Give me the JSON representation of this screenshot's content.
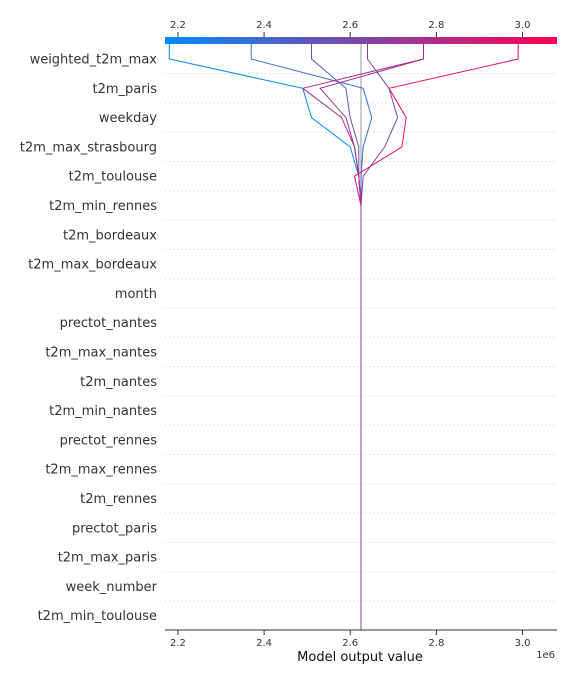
{
  "chart_data": {
    "type": "line",
    "xlabel": "Model output value",
    "x_offset_label": "1e6",
    "xlim": [
      2.17,
      3.08
    ],
    "x_ticks": [
      2.2,
      2.4,
      2.6,
      2.8,
      3.0
    ],
    "x_tick_labels": [
      "2.2",
      "2.4",
      "2.6",
      "2.8",
      "3.0"
    ],
    "base_value": 2.625,
    "colorbar": {
      "start_color": "#008bfb",
      "end_color": "#ff0052",
      "range": [
        2.17,
        3.08
      ]
    },
    "features": [
      "weighted_t2m_max",
      "t2m_paris",
      "weekday",
      "t2m_max_strasbourg",
      "t2m_toulouse",
      "t2m_min_rennes",
      "t2m_bordeaux",
      "t2m_max_bordeaux",
      "month",
      "prectot_nantes",
      "t2m_max_nantes",
      "t2m_nantes",
      "t2m_min_nantes",
      "prectot_rennes",
      "t2m_max_rennes",
      "t2m_rennes",
      "prectot_paris",
      "t2m_max_paris",
      "week_number",
      "t2m_min_toulouse"
    ],
    "series": [
      {
        "output": 2.18,
        "points": [
          2.625,
          2.625,
          2.625,
          2.625,
          2.625,
          2.625,
          2.625,
          2.625,
          2.625,
          2.625,
          2.625,
          2.625,
          2.625,
          2.625,
          2.625,
          2.625,
          2.62,
          2.6,
          2.51,
          2.49,
          2.18
        ]
      },
      {
        "output": 2.37,
        "points": [
          2.625,
          2.625,
          2.625,
          2.625,
          2.625,
          2.625,
          2.625,
          2.625,
          2.625,
          2.625,
          2.625,
          2.625,
          2.625,
          2.625,
          2.625,
          2.625,
          2.625,
          2.63,
          2.65,
          2.63,
          2.37
        ]
      },
      {
        "output": 2.51,
        "points": [
          2.625,
          2.625,
          2.625,
          2.625,
          2.625,
          2.625,
          2.625,
          2.625,
          2.625,
          2.625,
          2.625,
          2.625,
          2.625,
          2.625,
          2.625,
          2.625,
          2.62,
          2.62,
          2.6,
          2.59,
          2.51
        ]
      },
      {
        "output": 2.77,
        "points": [
          2.625,
          2.625,
          2.625,
          2.625,
          2.625,
          2.625,
          2.625,
          2.625,
          2.625,
          2.625,
          2.625,
          2.625,
          2.625,
          2.625,
          2.625,
          2.625,
          2.62,
          2.61,
          2.58,
          2.49,
          2.77
        ]
      },
      {
        "output": 2.77,
        "points": [
          2.625,
          2.625,
          2.625,
          2.625,
          2.625,
          2.625,
          2.625,
          2.625,
          2.625,
          2.625,
          2.625,
          2.625,
          2.625,
          2.625,
          2.625,
          2.625,
          2.62,
          2.61,
          2.59,
          2.53,
          2.77
        ]
      },
      {
        "output": 2.99,
        "points": [
          2.625,
          2.625,
          2.625,
          2.625,
          2.625,
          2.625,
          2.625,
          2.625,
          2.625,
          2.625,
          2.625,
          2.625,
          2.625,
          2.625,
          2.625,
          2.625,
          2.61,
          2.72,
          2.73,
          2.69,
          2.99
        ]
      },
      {
        "output": 2.64,
        "points": [
          2.625,
          2.625,
          2.625,
          2.625,
          2.625,
          2.625,
          2.625,
          2.625,
          2.625,
          2.625,
          2.625,
          2.625,
          2.625,
          2.625,
          2.625,
          2.625,
          2.63,
          2.68,
          2.71,
          2.69,
          2.64
        ]
      }
    ]
  }
}
